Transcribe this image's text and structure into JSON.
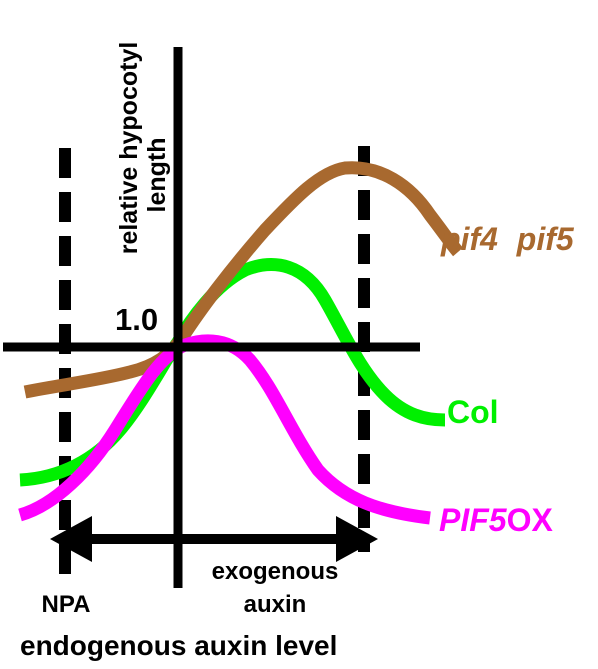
{
  "y_axis_label_line1": "relative hypocotyl",
  "y_axis_label_line2": "length",
  "baseline_value": "1.0",
  "npa_label": "NPA",
  "exogenous_label_line1": "exogenous",
  "exogenous_label_line2": "auxin",
  "x_axis_label": "endogenous auxin level",
  "curves": {
    "pif4pif5": {
      "label_part1": "pif4",
      "label_part2": "pif5",
      "color": "#A8692F"
    },
    "col": {
      "label": "Col",
      "color": "#00F000"
    },
    "pif5ox": {
      "label_part1": "PIF5",
      "label_part2": "OX",
      "color": "#FF00FF"
    }
  },
  "axis_color": "#000000"
}
